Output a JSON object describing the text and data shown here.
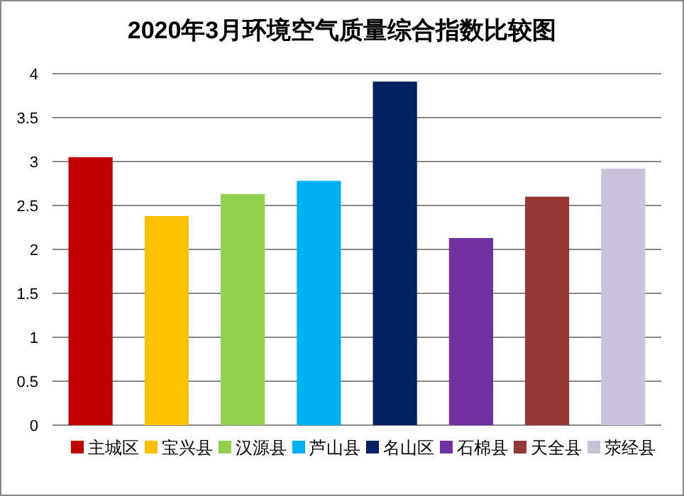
{
  "chart_data": {
    "type": "bar",
    "title": "2020年3月环境空气质量综合指数比较图",
    "categories": [
      null
    ],
    "series": [
      {
        "name": "主城区",
        "color": "#c00000",
        "values": [
          3.05
        ]
      },
      {
        "name": "宝兴县",
        "color": "#ffc000",
        "values": [
          2.38
        ]
      },
      {
        "name": "汉源县",
        "color": "#92d050",
        "values": [
          2.63
        ]
      },
      {
        "name": "芦山县",
        "color": "#00b0f0",
        "values": [
          2.78
        ]
      },
      {
        "name": "名山区",
        "color": "#002060",
        "values": [
          3.91
        ]
      },
      {
        "name": "石棉县",
        "color": "#7030a0",
        "values": [
          2.13
        ]
      },
      {
        "name": "天全县",
        "color": "#953735",
        "values": [
          2.6
        ]
      },
      {
        "name": "荥经县",
        "color": "#ccc1da",
        "values": [
          2.92
        ]
      }
    ],
    "ylim": [
      0,
      4
    ],
    "yticks": [
      0,
      0.5,
      1,
      1.5,
      2,
      2.5,
      3,
      3.5,
      4
    ],
    "grid": "y",
    "legend": "bottom",
    "tick_labels": "y"
  }
}
